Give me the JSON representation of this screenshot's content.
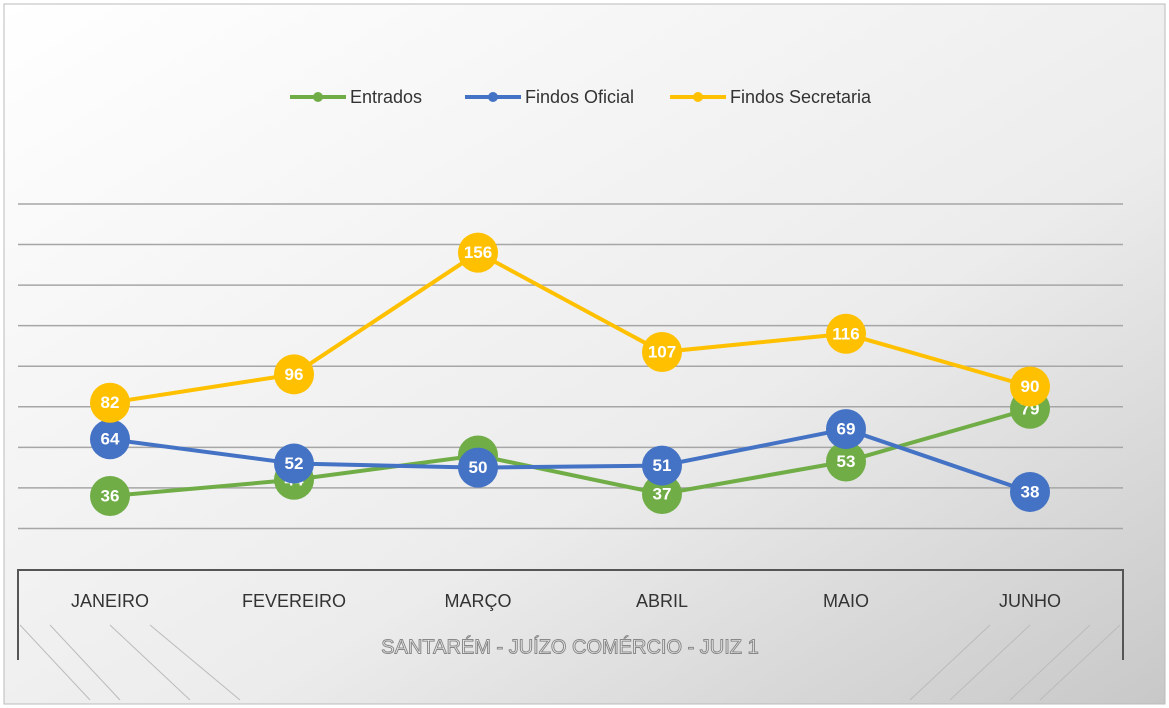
{
  "chart_data": {
    "type": "line",
    "title": "SANTARÉM - JUÍZO COMÉRCIO - JUIZ 1",
    "categories": [
      "JANEIRO",
      "FEVEREIRO",
      "MARÇO",
      "ABRIL",
      "MAIO",
      "JUNHO"
    ],
    "series": [
      {
        "name": "Entrados",
        "color": "#70ad47",
        "values": [
          36,
          44,
          56,
          37,
          53,
          79
        ]
      },
      {
        "name": "Findos Oficial",
        "color": "#4472c4",
        "values": [
          64,
          52,
          50,
          51,
          69,
          38
        ]
      },
      {
        "name": "Findos Secretaria",
        "color": "#ffc000",
        "values": [
          82,
          96,
          156,
          107,
          116,
          90
        ]
      }
    ],
    "ylim": [
      0,
      180
    ],
    "yticks": [
      20,
      40,
      60,
      80,
      100,
      120,
      140,
      160,
      180
    ],
    "grid": true,
    "legend": "top"
  }
}
